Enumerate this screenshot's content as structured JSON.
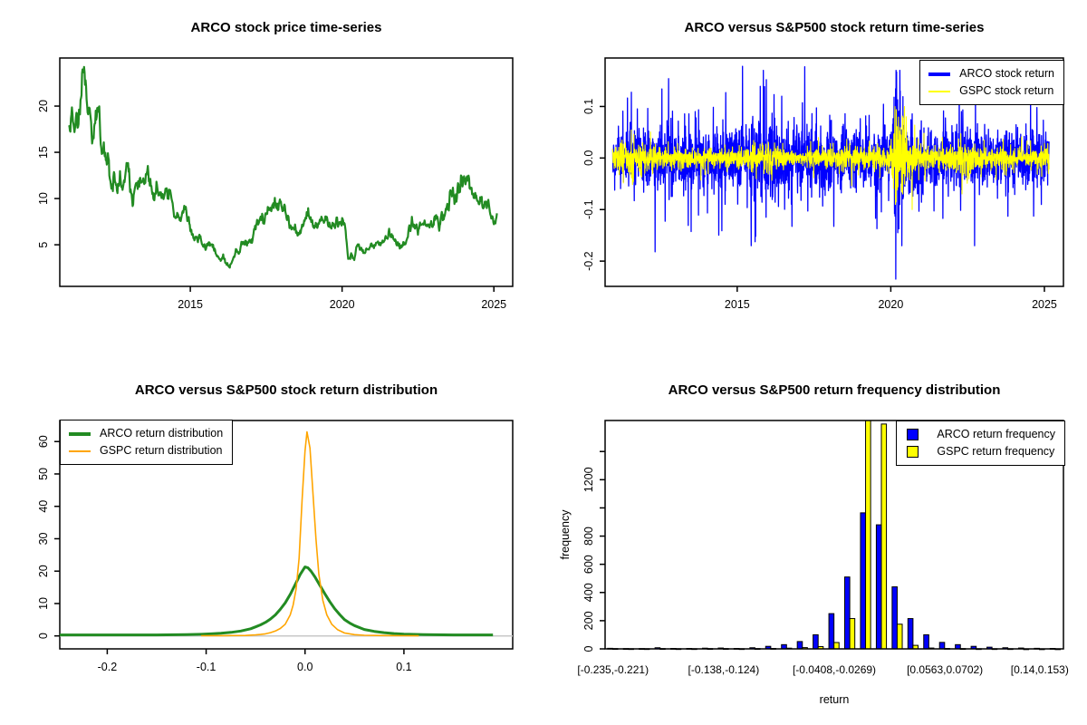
{
  "page": {
    "background": "#ffffff",
    "text_color": "#000000"
  },
  "chart_data": [
    {
      "id": "price-timeseries",
      "type": "line",
      "title": "ARCO stock price time-series",
      "x_ticks": [
        2015,
        2020,
        2025
      ],
      "x_tick_labels": [
        "2015",
        "2020",
        "2025"
      ],
      "y_ticks": [
        5,
        10,
        15,
        20
      ],
      "y_tick_labels": [
        "5",
        "10",
        "15",
        "20"
      ],
      "xlim": [
        2010.7,
        2025.62
      ],
      "ylim": [
        0.5,
        25.2
      ],
      "grid": false,
      "series": [
        {
          "name": "ARCO stock price",
          "color": "#228B22",
          "line_width": 2.2,
          "x_start": 2011.0,
          "x_step": 0.1,
          "values": [
            17.8,
            19.8,
            17.2,
            18.6,
            21.5,
            24.0,
            19.8,
            18.0,
            16.2,
            18.8,
            18.5,
            15.6,
            15.0,
            14.0,
            11.2,
            12.3,
            10.6,
            12.1,
            11.0,
            13.4,
            12.6,
            9.4,
            11.2,
            12.1,
            10.8,
            11.8,
            13.0,
            11.4,
            10.1,
            11.0,
            10.4,
            10.0,
            10.6,
            10.3,
            9.6,
            7.4,
            8.6,
            7.3,
            9.4,
            8.4,
            7.0,
            5.8,
            5.5,
            6.1,
            5.2,
            4.6,
            5.3,
            5.0,
            4.3,
            3.8,
            3.2,
            3.6,
            2.9,
            2.7,
            3.4,
            4.4,
            4.2,
            5.2,
            4.8,
            5.4,
            5.3,
            6.4,
            7.5,
            8.0,
            7.2,
            8.3,
            9.0,
            9.4,
            9.2,
            9.0,
            9.3,
            8.8,
            8.0,
            7.0,
            6.7,
            6.5,
            6.3,
            7.0,
            7.8,
            8.0,
            7.5,
            6.6,
            7.0,
            7.6,
            7.0,
            7.8,
            7.2,
            7.5,
            7.6,
            7.2,
            7.6,
            6.8,
            3.3,
            3.9,
            3.5,
            4.8,
            4.6,
            4.2,
            4.4,
            4.8,
            5.0,
            4.9,
            5.3,
            5.1,
            5.5,
            6.2,
            6.0,
            5.6,
            5.2,
            4.8,
            5.0,
            5.4,
            6.5,
            7.5,
            7.0,
            6.4,
            7.0,
            7.5,
            7.2,
            7.3,
            7.5,
            7.8,
            7.4,
            8.0,
            8.5,
            9.5,
            10.6,
            9.8,
            10.1,
            11.2,
            12.0,
            12.7,
            11.8,
            11.0,
            10.0,
            9.4,
            9.9,
            9.0,
            10.0,
            8.3,
            7.4,
            8.4
          ]
        }
      ]
    },
    {
      "id": "return-timeseries",
      "type": "noise-line",
      "title": "ARCO versus S&P500 stock return time-series",
      "x_ticks": [
        2015,
        2020,
        2025
      ],
      "x_tick_labels": [
        "2015",
        "2020",
        "2025"
      ],
      "y_ticks": [
        0.1,
        0.0,
        -0.1,
        -0.2
      ],
      "y_tick_labels": [
        "0.1",
        "0.0",
        "-0.1",
        "-0.2"
      ],
      "xlim": [
        2010.7,
        2025.62
      ],
      "ylim": [
        -0.249,
        0.194
      ],
      "t_start": 2010.95,
      "t_end": 2025.15,
      "legend": {
        "position": "top-right",
        "items": [
          {
            "label": "ARCO stock return",
            "color": "#0000FF",
            "sample": "thick-line"
          },
          {
            "label": "GSPC stock return",
            "color": "#FFFF00",
            "sample": "thin-line"
          }
        ]
      },
      "series": [
        {
          "name": "ARCO stock return",
          "color": "#0000FF",
          "line_width": 1.3,
          "seed": 1337,
          "typical_daily_sd": 0.027,
          "envelope": [
            [
              2011,
              0.026
            ],
            [
              2012,
              0.03
            ],
            [
              2012.6,
              0.027
            ],
            [
              2013.5,
              0.024
            ],
            [
              2014.5,
              0.027
            ],
            [
              2015,
              0.031
            ],
            [
              2015.5,
              0.035
            ],
            [
              2016.2,
              0.036
            ],
            [
              2016.8,
              0.033
            ],
            [
              2017.5,
              0.028
            ],
            [
              2018.2,
              0.025
            ],
            [
              2018.8,
              0.029
            ],
            [
              2019.5,
              0.027
            ],
            [
              2020.0,
              0.027
            ],
            [
              2020.18,
              0.06
            ],
            [
              2020.45,
              0.036
            ],
            [
              2021,
              0.03
            ],
            [
              2021.8,
              0.026
            ],
            [
              2022.5,
              0.027
            ],
            [
              2023.2,
              0.023
            ],
            [
              2024,
              0.025
            ],
            [
              2024.8,
              0.025
            ],
            [
              2025.2,
              0.026
            ]
          ],
          "extreme_days": [
            [
              2012.33,
              -0.182
            ],
            [
              2012.55,
              0.134
            ],
            [
              2014.5,
              -0.141
            ],
            [
              2015.17,
              0.178
            ],
            [
              2015.6,
              -0.152
            ],
            [
              2015.75,
              0.139
            ],
            [
              2015.95,
              0.152
            ],
            [
              2016.2,
              0.123
            ],
            [
              2016.45,
              0.12
            ],
            [
              2017.2,
              0.177
            ],
            [
              2017.3,
              -0.103
            ],
            [
              2019.55,
              -0.137
            ],
            [
              2020.16,
              -0.235
            ],
            [
              2020.19,
              0.167
            ],
            [
              2020.23,
              -0.145
            ],
            [
              2020.3,
              0.105
            ],
            [
              2022.3,
              0.09
            ],
            [
              2024.55,
              0.116
            ],
            [
              2024.9,
              -0.09
            ]
          ]
        },
        {
          "name": "GSPC stock return",
          "color": "#FFFF00",
          "line_width": 1.1,
          "seed": 4242,
          "typical_daily_sd": 0.01,
          "envelope": [
            [
              2011,
              0.012
            ],
            [
              2011.6,
              0.018
            ],
            [
              2012.2,
              0.01
            ],
            [
              2013,
              0.008
            ],
            [
              2014,
              0.007
            ],
            [
              2014.8,
              0.008
            ],
            [
              2015.6,
              0.012
            ],
            [
              2016.3,
              0.009
            ],
            [
              2017,
              0.005
            ],
            [
              2018,
              0.009
            ],
            [
              2018.9,
              0.013
            ],
            [
              2019.5,
              0.008
            ],
            [
              2020.0,
              0.012
            ],
            [
              2020.18,
              0.045
            ],
            [
              2020.5,
              0.022
            ],
            [
              2021,
              0.01
            ],
            [
              2021.8,
              0.009
            ],
            [
              2022.4,
              0.015
            ],
            [
              2023,
              0.01
            ],
            [
              2023.8,
              0.008
            ],
            [
              2024.5,
              0.007
            ],
            [
              2025.2,
              0.011
            ]
          ],
          "extreme_days": [
            [
              2011.62,
              -0.046
            ],
            [
              2011.64,
              0.046
            ],
            [
              2015.62,
              -0.04
            ],
            [
              2018.95,
              -0.033
            ],
            [
              2020.15,
              -0.09
            ],
            [
              2020.18,
              0.094
            ],
            [
              2020.21,
              -0.062
            ],
            [
              2020.26,
              0.06
            ],
            [
              2022.35,
              -0.033
            ],
            [
              2025.13,
              -0.03
            ]
          ]
        }
      ]
    },
    {
      "id": "return-density",
      "type": "density",
      "title": "ARCO versus S&P500 stock return distribution",
      "x_ticks": [
        -0.2,
        -0.1,
        0.0,
        0.1
      ],
      "x_tick_labels": [
        "-0.2",
        "-0.1",
        "0.0",
        "0.1"
      ],
      "y_ticks": [
        0,
        10,
        20,
        30,
        40,
        50,
        60
      ],
      "y_tick_labels": [
        "0",
        "10",
        "20",
        "30",
        "40",
        "50",
        "60"
      ],
      "xlim": [
        -0.248,
        0.21
      ],
      "ylim": [
        -4,
        66.5
      ],
      "zero_line_color": "#C8C8C8",
      "legend": {
        "position": "top-left",
        "items": [
          {
            "label": "ARCO return distribution",
            "color": "#228B22",
            "sample": "thick-line"
          },
          {
            "label": "GSPC return distribution",
            "color": "#FFA500",
            "sample": "thin-line"
          }
        ]
      },
      "series": [
        {
          "name": "ARCO return distribution",
          "color": "#228B22",
          "line_width": 3,
          "peak": 21.3,
          "x": [
            -0.248,
            -0.2,
            -0.15,
            -0.12,
            -0.105,
            -0.095,
            -0.085,
            -0.075,
            -0.065,
            -0.055,
            -0.05,
            -0.045,
            -0.04,
            -0.035,
            -0.03,
            -0.025,
            -0.02,
            -0.015,
            -0.01,
            -0.005,
            0,
            0.003,
            0.006,
            0.01,
            0.015,
            0.02,
            0.025,
            0.03,
            0.035,
            0.04,
            0.045,
            0.05,
            0.06,
            0.07,
            0.08,
            0.09,
            0.1,
            0.12,
            0.15,
            0.19
          ],
          "y": [
            0.3,
            0.3,
            0.32,
            0.4,
            0.5,
            0.65,
            0.8,
            1.1,
            1.5,
            2.2,
            2.8,
            3.4,
            4.2,
            5.2,
            6.5,
            8.2,
            10.2,
            12.8,
            15.8,
            18.9,
            21.3,
            21.0,
            20.0,
            18.2,
            15.6,
            13.0,
            10.6,
            8.4,
            6.6,
            5.0,
            4.0,
            3.2,
            2.0,
            1.4,
            1.0,
            0.72,
            0.55,
            0.4,
            0.32,
            0.3
          ]
        },
        {
          "name": "GSPC return distribution",
          "color": "#FFA500",
          "line_width": 1.6,
          "peak": 63,
          "x": [
            -0.105,
            -0.08,
            -0.06,
            -0.05,
            -0.045,
            -0.04,
            -0.035,
            -0.03,
            -0.025,
            -0.02,
            -0.015,
            -0.012,
            -0.009,
            -0.006,
            -0.003,
            0,
            0.002,
            0.005,
            0.008,
            0.011,
            0.014,
            0.018,
            0.022,
            0.027,
            0.033,
            0.04,
            0.05,
            0.06,
            0.08,
            0.1,
            0.115
          ],
          "y": [
            0.05,
            0.08,
            0.15,
            0.3,
            0.45,
            0.65,
            1.0,
            1.5,
            2.3,
            3.6,
            6.5,
            9.5,
            14.5,
            24,
            42,
            57,
            63,
            58,
            44,
            30,
            19,
            11,
            6.5,
            3.6,
            1.9,
            0.9,
            0.4,
            0.2,
            0.1,
            0.06,
            0.04
          ]
        }
      ]
    },
    {
      "id": "return-frequency",
      "type": "grouped-bar",
      "title": "ARCO versus S&P500 return frequency distribution",
      "xlabel": "return",
      "ylabel": "frequency",
      "ylim": [
        0,
        1620
      ],
      "y_ticks_all": [
        0,
        200,
        400,
        600,
        800,
        1000,
        1200,
        1400
      ],
      "y_ticks_labeled": [
        0,
        200,
        400,
        600,
        800,
        1200
      ],
      "y_tick_labels": [
        "0",
        "200",
        "400",
        "600",
        "800",
        "1200"
      ],
      "n_bins": 29,
      "bin_labels": [
        {
          "index": 0,
          "label": "[-0.235,-0.221)"
        },
        {
          "index": 7,
          "label": "[-0.138,-0.124)"
        },
        {
          "index": 14,
          "label": "[-0.0408,-0.0269)"
        },
        {
          "index": 21,
          "label": "[0.0563,0.0702)"
        },
        {
          "index": 27,
          "label": "[0.14,0.153)"
        }
      ],
      "legend": {
        "position": "top-right",
        "items": [
          {
            "label": "ARCO return frequency",
            "color": "#0000FF",
            "sample": "square"
          },
          {
            "label": "GSPC return frequency",
            "color": "#FFFF00",
            "sample": "square"
          }
        ]
      },
      "series": [
        {
          "name": "ARCO return frequency",
          "color": "#0000FF",
          "values": [
            4,
            2,
            2,
            8,
            3,
            3,
            5,
            6,
            3,
            8,
            18,
            30,
            52,
            100,
            250,
            510,
            965,
            880,
            440,
            215,
            100,
            46,
            30,
            18,
            12,
            8,
            6,
            4,
            3
          ]
        },
        {
          "name": "GSPC return frequency",
          "color": "#FFFF00",
          "values": [
            2,
            1,
            1,
            2,
            1,
            1,
            2,
            2,
            1,
            2,
            3,
            5,
            9,
            16,
            45,
            215,
            1650,
            1595,
            175,
            25,
            6,
            3,
            2,
            1,
            1,
            1,
            0,
            0,
            0
          ]
        }
      ]
    }
  ]
}
